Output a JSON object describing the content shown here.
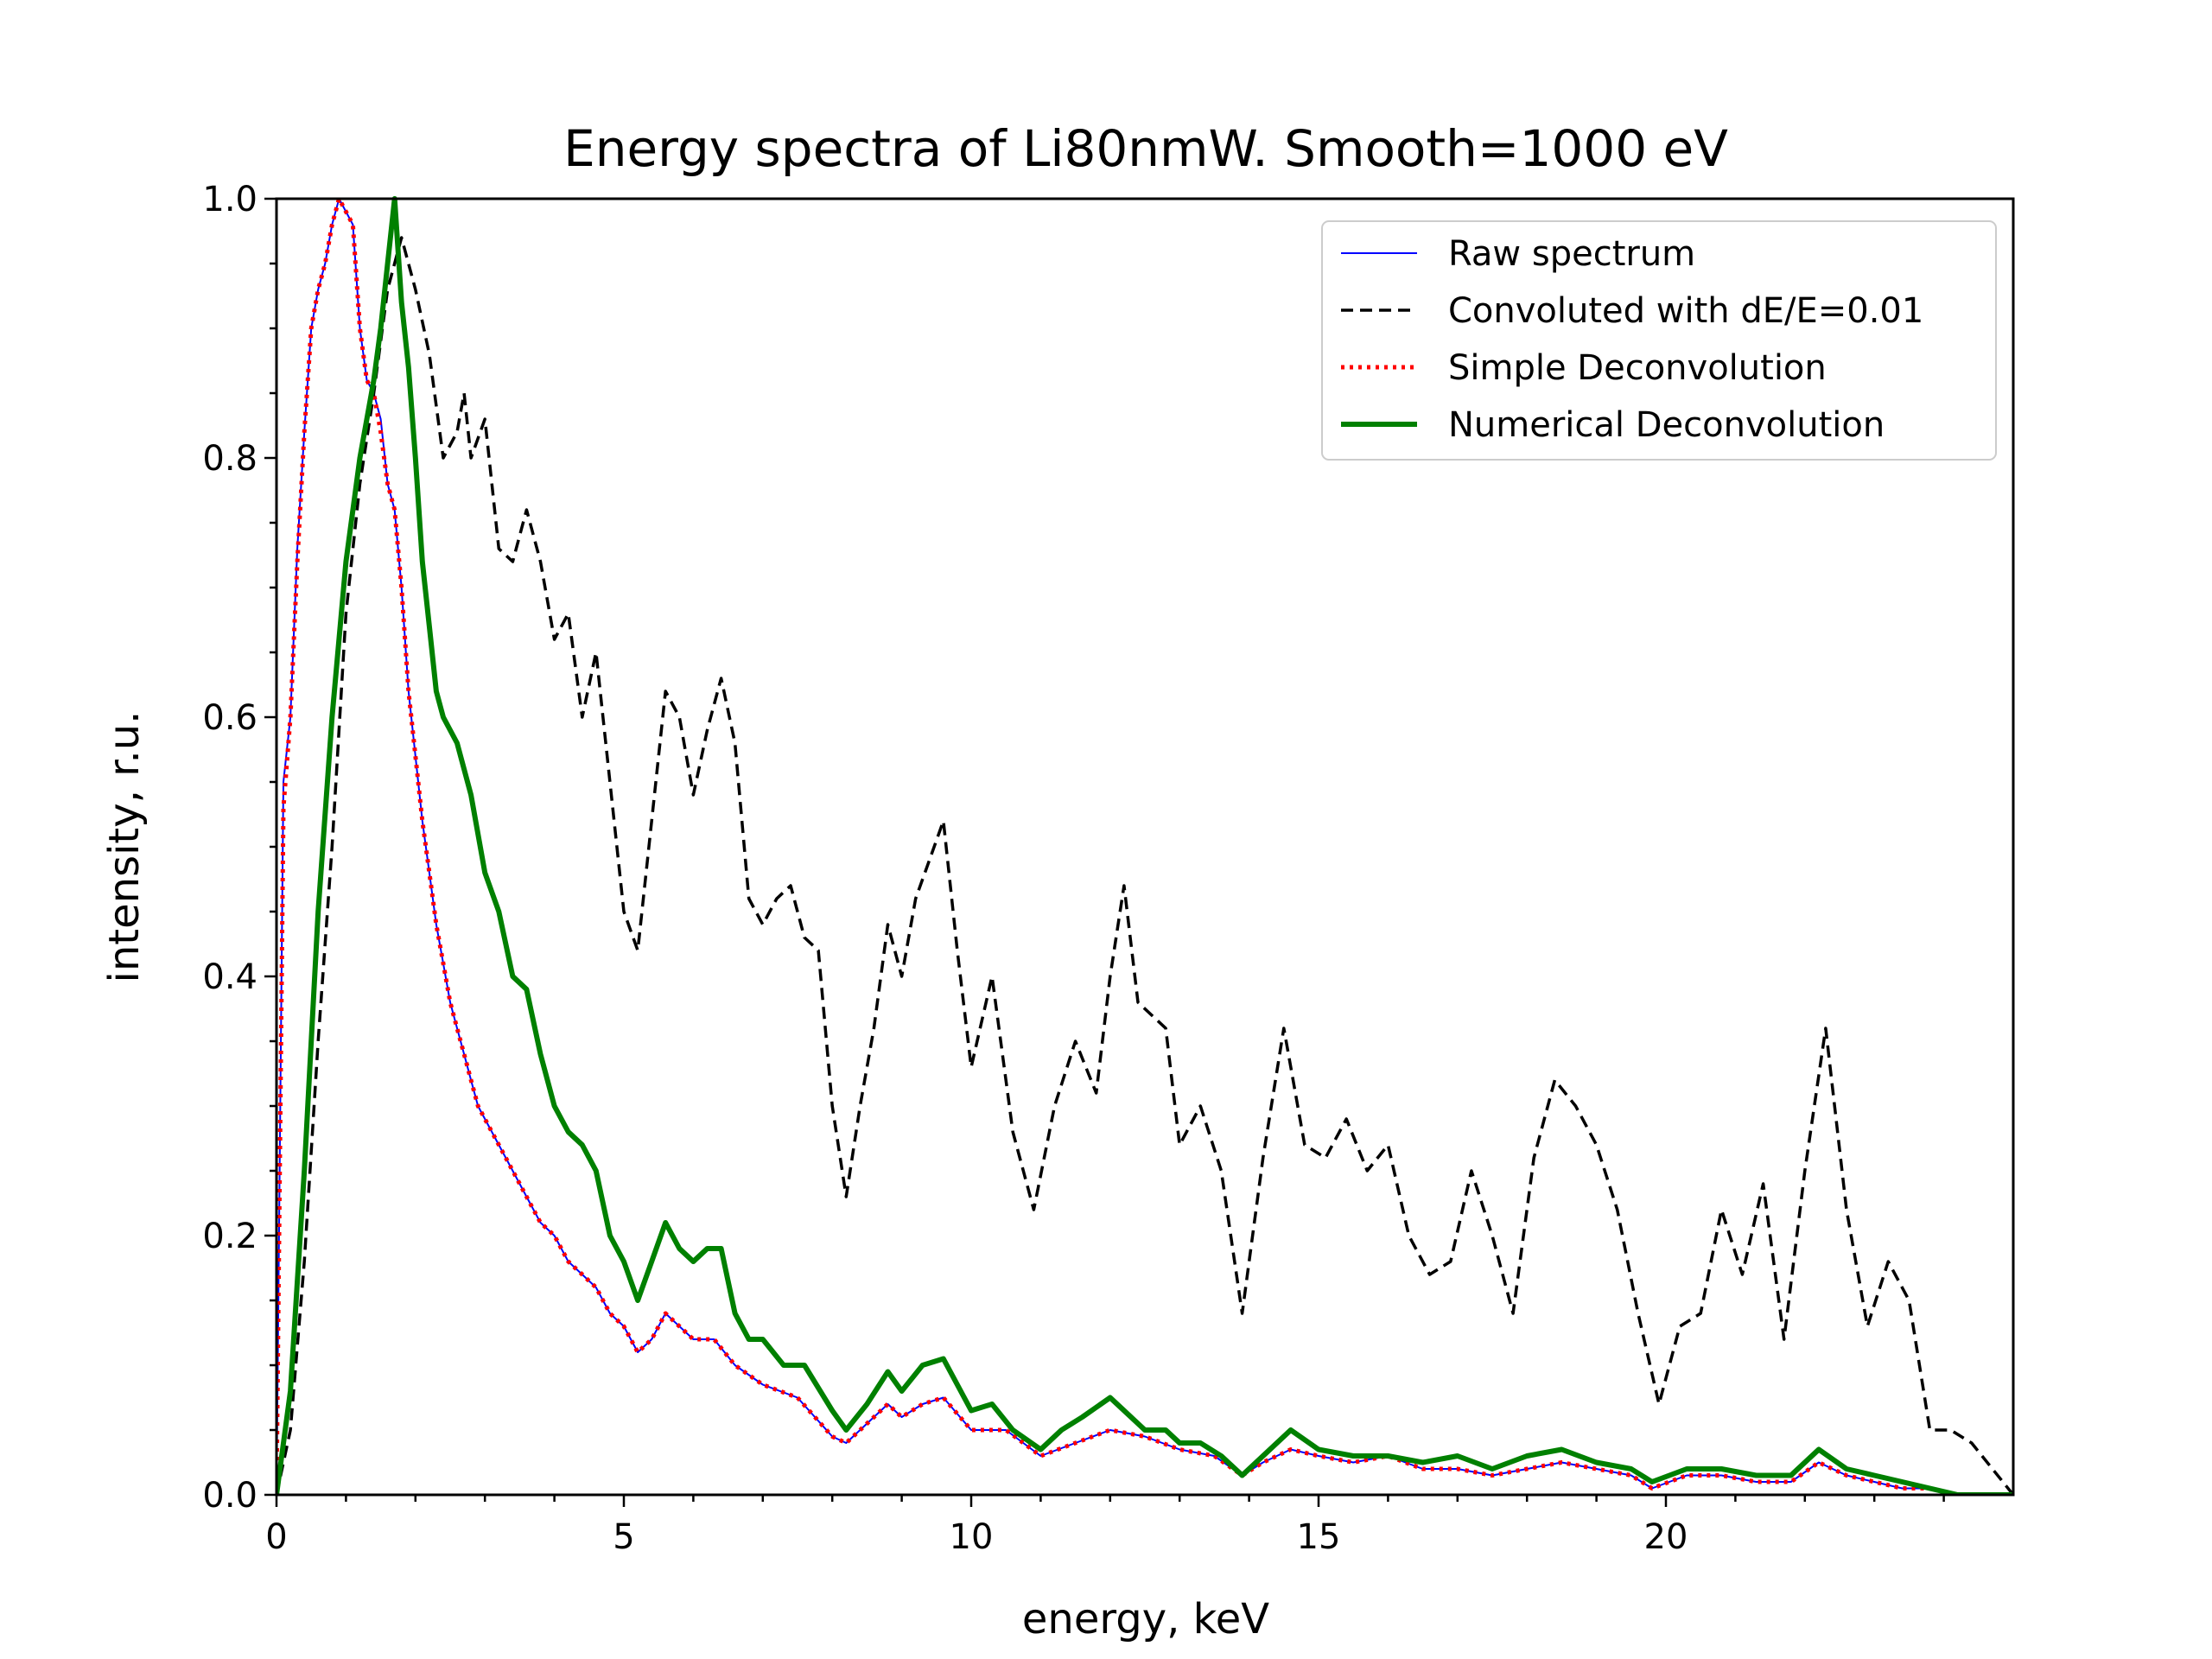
{
  "chart_data": {
    "type": "line",
    "title": "Energy spectra of Li80nmW. Smooth=1000 eV",
    "xlabel": "energy, keV",
    "ylabel": "intensity, r.u.",
    "xlim": [
      0,
      25
    ],
    "ylim": [
      0,
      1.0
    ],
    "xticks": [
      0,
      5,
      10,
      15,
      20
    ],
    "yticks": [
      0.0,
      0.2,
      0.4,
      0.6,
      0.8,
      1.0
    ],
    "xtick_labels": [
      "0",
      "5",
      "10",
      "15",
      "20"
    ],
    "ytick_labels": [
      "0.0",
      "0.2",
      "0.4",
      "0.6",
      "0.8",
      "1.0"
    ],
    "grid": false,
    "legend_position": "top-right",
    "series": [
      {
        "name": "Raw spectrum",
        "color": "#0000ff",
        "style": "solid-thin",
        "x": [
          0,
          0.1,
          0.2,
          0.3,
          0.4,
          0.5,
          0.6,
          0.7,
          0.8,
          0.9,
          1.0,
          1.1,
          1.2,
          1.3,
          1.4,
          1.5,
          1.6,
          1.7,
          1.8,
          1.9,
          2.0,
          2.1,
          2.2,
          2.3,
          2.4,
          2.5,
          2.6,
          2.7,
          2.8,
          2.9,
          3.0,
          3.2,
          3.4,
          3.6,
          3.8,
          4.0,
          4.2,
          4.4,
          4.6,
          4.8,
          5.0,
          5.2,
          5.4,
          5.6,
          5.8,
          6.0,
          6.3,
          6.6,
          7.0,
          7.5,
          8.0,
          8.2,
          8.5,
          8.8,
          9.0,
          9.3,
          9.6,
          10.0,
          10.5,
          11.0,
          11.5,
          12.0,
          12.5,
          13.0,
          13.5,
          13.9,
          14.2,
          14.6,
          15.0,
          15.5,
          16.0,
          16.5,
          17.0,
          17.5,
          18.0,
          18.5,
          19.0,
          19.5,
          19.8,
          20.3,
          20.8,
          21.3,
          21.8,
          22.2,
          22.6,
          23.0,
          23.4,
          23.8,
          24.2,
          25.0
        ],
        "y": [
          0.0,
          0.55,
          0.6,
          0.73,
          0.82,
          0.9,
          0.93,
          0.95,
          0.98,
          1.0,
          0.99,
          0.98,
          0.9,
          0.86,
          0.85,
          0.83,
          0.78,
          0.76,
          0.7,
          0.62,
          0.57,
          0.52,
          0.48,
          0.44,
          0.41,
          0.38,
          0.36,
          0.34,
          0.32,
          0.3,
          0.29,
          0.27,
          0.25,
          0.23,
          0.21,
          0.2,
          0.18,
          0.17,
          0.16,
          0.14,
          0.13,
          0.11,
          0.12,
          0.14,
          0.13,
          0.12,
          0.12,
          0.1,
          0.085,
          0.075,
          0.045,
          0.04,
          0.055,
          0.07,
          0.06,
          0.07,
          0.075,
          0.05,
          0.05,
          0.03,
          0.04,
          0.05,
          0.045,
          0.035,
          0.03,
          0.015,
          0.025,
          0.035,
          0.03,
          0.025,
          0.03,
          0.02,
          0.02,
          0.015,
          0.02,
          0.025,
          0.02,
          0.015,
          0.005,
          0.015,
          0.015,
          0.01,
          0.01,
          0.025,
          0.015,
          0.01,
          0.005,
          0.005,
          0.0,
          0.0
        ]
      },
      {
        "name": "Convoluted with dE/E=0.01",
        "color": "#000000",
        "style": "dashed",
        "x": [
          0,
          0.2,
          0.4,
          0.6,
          0.8,
          1.0,
          1.2,
          1.4,
          1.6,
          1.8,
          2.0,
          2.2,
          2.4,
          2.6,
          2.7,
          2.8,
          3.0,
          3.2,
          3.4,
          3.6,
          3.8,
          4.0,
          4.2,
          4.4,
          4.6,
          4.8,
          5.0,
          5.2,
          5.4,
          5.6,
          5.8,
          6.0,
          6.2,
          6.4,
          6.6,
          6.8,
          7.0,
          7.2,
          7.4,
          7.6,
          7.8,
          8.0,
          8.2,
          8.4,
          8.6,
          8.8,
          9.0,
          9.2,
          9.4,
          9.6,
          9.8,
          10.0,
          10.3,
          10.6,
          10.9,
          11.2,
          11.5,
          11.8,
          12.0,
          12.2,
          12.4,
          12.6,
          12.8,
          13.0,
          13.3,
          13.6,
          13.9,
          14.2,
          14.5,
          14.8,
          15.1,
          15.4,
          15.7,
          16.0,
          16.3,
          16.6,
          16.9,
          17.2,
          17.5,
          17.8,
          18.1,
          18.4,
          18.7,
          19.0,
          19.3,
          19.6,
          19.9,
          20.2,
          20.5,
          20.8,
          21.1,
          21.4,
          21.7,
          22.0,
          22.3,
          22.6,
          22.9,
          23.2,
          23.5,
          23.8,
          24.1,
          24.4,
          25.0
        ],
        "y": [
          0.0,
          0.05,
          0.18,
          0.35,
          0.5,
          0.68,
          0.78,
          0.85,
          0.93,
          0.97,
          0.93,
          0.88,
          0.8,
          0.82,
          0.85,
          0.8,
          0.83,
          0.73,
          0.72,
          0.76,
          0.72,
          0.66,
          0.68,
          0.6,
          0.65,
          0.55,
          0.45,
          0.42,
          0.52,
          0.62,
          0.6,
          0.54,
          0.59,
          0.63,
          0.58,
          0.46,
          0.44,
          0.46,
          0.47,
          0.43,
          0.42,
          0.3,
          0.23,
          0.3,
          0.36,
          0.44,
          0.4,
          0.46,
          0.49,
          0.52,
          0.42,
          0.33,
          0.4,
          0.28,
          0.22,
          0.3,
          0.35,
          0.31,
          0.4,
          0.47,
          0.38,
          0.37,
          0.36,
          0.27,
          0.3,
          0.25,
          0.14,
          0.26,
          0.36,
          0.27,
          0.26,
          0.29,
          0.25,
          0.27,
          0.2,
          0.17,
          0.18,
          0.25,
          0.2,
          0.14,
          0.26,
          0.32,
          0.3,
          0.27,
          0.22,
          0.14,
          0.07,
          0.13,
          0.14,
          0.22,
          0.17,
          0.24,
          0.12,
          0.25,
          0.36,
          0.22,
          0.13,
          0.18,
          0.15,
          0.05,
          0.05,
          0.04,
          0.0
        ]
      },
      {
        "name": "Simple Deconvolution",
        "color": "#ff0000",
        "style": "dotted",
        "x": [
          0,
          0.1,
          0.2,
          0.3,
          0.4,
          0.5,
          0.6,
          0.7,
          0.8,
          0.9,
          1.0,
          1.1,
          1.2,
          1.3,
          1.4,
          1.5,
          1.6,
          1.7,
          1.8,
          1.9,
          2.0,
          2.1,
          2.2,
          2.3,
          2.4,
          2.5,
          2.6,
          2.7,
          2.8,
          2.9,
          3.0,
          3.2,
          3.4,
          3.6,
          3.8,
          4.0,
          4.2,
          4.4,
          4.6,
          4.8,
          5.0,
          5.2,
          5.4,
          5.6,
          5.8,
          6.0,
          6.3,
          6.6,
          7.0,
          7.5,
          8.0,
          8.2,
          8.5,
          8.8,
          9.0,
          9.3,
          9.6,
          10.0,
          10.5,
          11.0,
          11.5,
          12.0,
          12.5,
          13.0,
          13.5,
          13.9,
          14.2,
          14.6,
          15.0,
          15.5,
          16.0,
          16.5,
          17.0,
          17.5,
          18.0,
          18.5,
          19.0,
          19.5,
          19.8,
          20.3,
          20.8,
          21.3,
          21.8,
          22.2,
          22.6,
          23.0,
          23.4,
          23.8,
          24.2,
          25.0
        ],
        "y": [
          0.0,
          0.53,
          0.6,
          0.72,
          0.82,
          0.9,
          0.93,
          0.95,
          0.98,
          1.0,
          0.99,
          0.98,
          0.9,
          0.86,
          0.85,
          0.82,
          0.78,
          0.76,
          0.7,
          0.62,
          0.57,
          0.52,
          0.48,
          0.44,
          0.41,
          0.38,
          0.36,
          0.34,
          0.32,
          0.3,
          0.29,
          0.27,
          0.25,
          0.23,
          0.21,
          0.2,
          0.18,
          0.17,
          0.16,
          0.14,
          0.13,
          0.11,
          0.12,
          0.14,
          0.13,
          0.12,
          0.12,
          0.1,
          0.085,
          0.075,
          0.045,
          0.04,
          0.055,
          0.07,
          0.06,
          0.07,
          0.075,
          0.05,
          0.05,
          0.03,
          0.04,
          0.05,
          0.045,
          0.035,
          0.03,
          0.015,
          0.025,
          0.035,
          0.03,
          0.025,
          0.03,
          0.02,
          0.02,
          0.015,
          0.02,
          0.025,
          0.02,
          0.015,
          0.005,
          0.015,
          0.015,
          0.01,
          0.01,
          0.025,
          0.015,
          0.01,
          0.005,
          0.005,
          0.0,
          0.0
        ]
      },
      {
        "name": "Numerical Deconvolution",
        "color": "#008000",
        "style": "solid-thick",
        "x": [
          0,
          0.2,
          0.4,
          0.6,
          0.8,
          1.0,
          1.2,
          1.4,
          1.5,
          1.6,
          1.7,
          1.8,
          1.9,
          2.0,
          2.1,
          2.2,
          2.3,
          2.4,
          2.6,
          2.8,
          3.0,
          3.2,
          3.4,
          3.6,
          3.8,
          4.0,
          4.2,
          4.4,
          4.6,
          4.8,
          5.0,
          5.2,
          5.4,
          5.6,
          5.8,
          6.0,
          6.2,
          6.4,
          6.6,
          6.8,
          7.0,
          7.3,
          7.6,
          8.0,
          8.2,
          8.5,
          8.8,
          9.0,
          9.3,
          9.6,
          10.0,
          10.3,
          10.6,
          11.0,
          11.3,
          11.6,
          12.0,
          12.2,
          12.5,
          12.8,
          13.0,
          13.3,
          13.6,
          13.9,
          14.2,
          14.6,
          15.0,
          15.5,
          16.0,
          16.5,
          17.0,
          17.5,
          18.0,
          18.5,
          19.0,
          19.5,
          19.8,
          20.3,
          20.8,
          21.3,
          21.8,
          22.2,
          22.6,
          23.0,
          23.4,
          23.8,
          24.2,
          25.0
        ],
        "y": [
          0.0,
          0.08,
          0.25,
          0.45,
          0.6,
          0.72,
          0.8,
          0.86,
          0.9,
          0.95,
          1.0,
          0.92,
          0.87,
          0.8,
          0.72,
          0.67,
          0.62,
          0.6,
          0.58,
          0.54,
          0.48,
          0.45,
          0.4,
          0.39,
          0.34,
          0.3,
          0.28,
          0.27,
          0.25,
          0.2,
          0.18,
          0.15,
          0.18,
          0.21,
          0.19,
          0.18,
          0.19,
          0.19,
          0.14,
          0.12,
          0.12,
          0.1,
          0.1,
          0.065,
          0.05,
          0.07,
          0.095,
          0.08,
          0.1,
          0.105,
          0.065,
          0.07,
          0.05,
          0.035,
          0.05,
          0.06,
          0.075,
          0.065,
          0.05,
          0.05,
          0.04,
          0.04,
          0.03,
          0.015,
          0.03,
          0.05,
          0.035,
          0.03,
          0.03,
          0.025,
          0.03,
          0.02,
          0.03,
          0.035,
          0.025,
          0.02,
          0.01,
          0.02,
          0.02,
          0.015,
          0.015,
          0.035,
          0.02,
          0.015,
          0.01,
          0.005,
          0.0,
          0.0
        ]
      }
    ]
  }
}
